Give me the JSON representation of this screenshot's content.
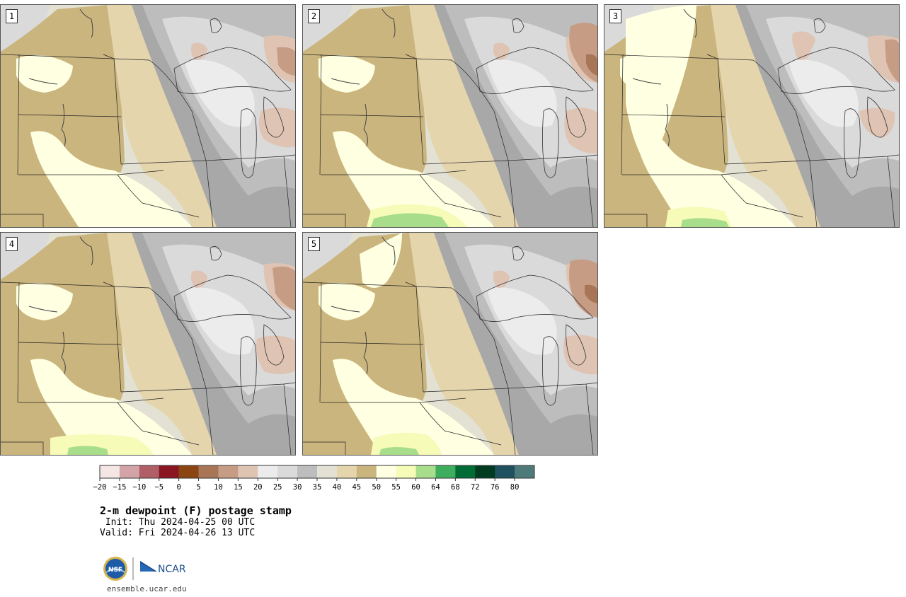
{
  "panels": [
    {
      "label": "1"
    },
    {
      "label": "2"
    },
    {
      "label": "3"
    },
    {
      "label": "4"
    },
    {
      "label": "5"
    }
  ],
  "colorbar": {
    "colors": [
      "#f5e6e6",
      "#d4a3a8",
      "#b05f66",
      "#8a1523",
      "#8b4513",
      "#a87657",
      "#c79c85",
      "#dfc4b4",
      "#ececec",
      "#dadada",
      "#bdbdbd",
      "#e2e1d3",
      "#e4d5ad",
      "#cbb57e",
      "#ffffe2",
      "#f6fbb8",
      "#a8dd8c",
      "#3fad5e",
      "#006b35",
      "#003b1f",
      "#1e5060",
      "#4f7a7a"
    ],
    "tick_labels": [
      "−20",
      "−15",
      "−10",
      "−5",
      "0",
      "5",
      "10",
      "15",
      "20",
      "25",
      "30",
      "35",
      "40",
      "45",
      "50",
      "55",
      "60",
      "64",
      "68",
      "72",
      "76",
      "80"
    ]
  },
  "title": "2-m dewpoint (F) postage stamp",
  "init": " Init: Thu 2024-04-25 00 UTC",
  "valid": "Valid: Fri 2024-04-26 13 UTC",
  "logos": {
    "nsf": "NSF",
    "ncar": "NCAR"
  },
  "url": "ensemble.ucar.edu"
}
